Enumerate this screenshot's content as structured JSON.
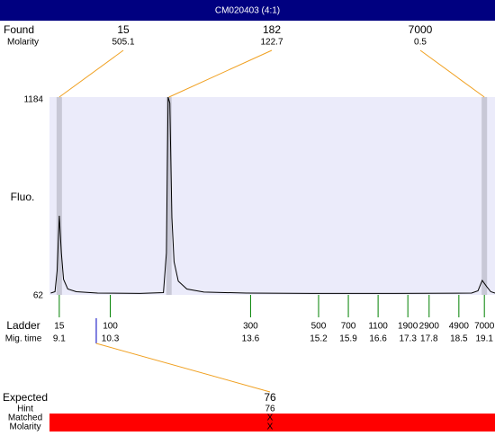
{
  "title": "CM020403 (4:1)",
  "chart_data": {
    "type": "line",
    "ylabel": "Fluo.",
    "xlim": [
      8.87,
      19.35
    ],
    "ylim": [
      62,
      1184
    ],
    "yticks": [
      62,
      1184
    ],
    "color": "#000000",
    "x": [
      8.9,
      9.0,
      9.05,
      9.1,
      9.15,
      9.2,
      9.3,
      9.5,
      10.0,
      11.0,
      11.55,
      11.62,
      11.66,
      11.7,
      11.75,
      11.8,
      11.9,
      12.1,
      12.5,
      13.5,
      15.0,
      17.0,
      18.8,
      18.95,
      19.05,
      19.15,
      19.25,
      19.35
    ],
    "values": [
      72,
      80,
      200,
      511,
      300,
      150,
      95,
      80,
      72,
      70,
      75,
      300,
      1184,
      1150,
      500,
      250,
      140,
      95,
      78,
      72,
      70,
      70,
      72,
      85,
      144,
      110,
      80,
      72
    ],
    "found": {
      "label": "Found",
      "sublabel": "Molarity",
      "sizes": [
        15,
        182,
        7000
      ],
      "molarities": [
        505.1,
        122.7,
        0.5
      ],
      "times": [
        9.1,
        11.68,
        19.1
      ]
    },
    "ladder": {
      "label": "Ladder",
      "sublabel": "Mig. time",
      "sizes": [
        15,
        100,
        300,
        500,
        700,
        1100,
        1900,
        2900,
        4900,
        7000
      ],
      "times": [
        9.1,
        10.3,
        13.6,
        15.2,
        15.9,
        16.6,
        17.3,
        17.8,
        18.5,
        19.1
      ]
    },
    "expected": {
      "label": "Expected",
      "value": 76,
      "time": 9.97,
      "hint_label": "Hint",
      "hint": 76,
      "matched_label": "Matched",
      "matched": "X",
      "molarity_label": "Molarity",
      "molarity": "X"
    }
  }
}
